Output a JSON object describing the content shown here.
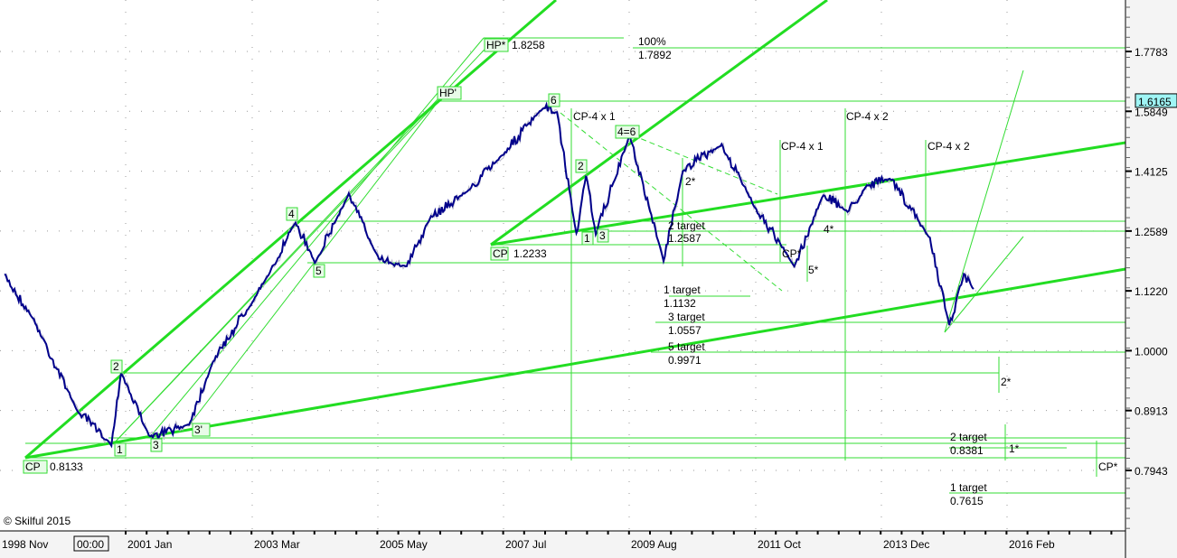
{
  "chart_data": {
    "type": "line",
    "title": "",
    "xlabel": "",
    "ylabel": "",
    "y_scale": "log",
    "ylim": [
      0.72,
      1.96
    ],
    "xlim": [
      "1998-11",
      "2018-03"
    ],
    "grid": true,
    "x_tick_labels": [
      "1998 Nov",
      "2001 Jan",
      "2003 Mar",
      "2005 May",
      "2007 Jul",
      "2009 Aug",
      "2011 Oct",
      "2013 Dec",
      "2016 Feb"
    ],
    "y_tick_labels": [
      "1.7783",
      "1.5849",
      "1.4125",
      "1.2589",
      "1.1220",
      "1.0000",
      "0.8913",
      "0.7943"
    ],
    "current_price": "1.6165",
    "series": [
      {
        "color": "#00008b",
        "points": [
          [
            "1998-12",
            1.156
          ],
          [
            "1999-06",
            1.06
          ],
          [
            "2000-03",
            0.891
          ],
          [
            "2000-10",
            0.835
          ],
          [
            "2000-12",
            0.96
          ],
          [
            "2001-06",
            0.846
          ],
          [
            "2002-02",
            0.868
          ],
          [
            "2002-07",
            0.98
          ],
          [
            "2003-07",
            1.167
          ],
          [
            "2003-12",
            1.282
          ],
          [
            "2004-04",
            1.186
          ],
          [
            "2004-11",
            1.351
          ],
          [
            "2005-05",
            1.197
          ],
          [
            "2005-11",
            1.176
          ],
          [
            "2006-04",
            1.294
          ],
          [
            "2006-12",
            1.364
          ],
          [
            "2007-07",
            1.462
          ],
          [
            "2008-03",
            1.594
          ],
          [
            "2008-06",
            1.581
          ],
          [
            "2008-10",
            1.25
          ],
          [
            "2008-12",
            1.4
          ],
          [
            "2009-02",
            1.253
          ],
          [
            "2009-09",
            1.513
          ],
          [
            "2010-04",
            1.19
          ],
          [
            "2010-08",
            1.414
          ],
          [
            "2011-04",
            1.487
          ],
          [
            "2011-10",
            1.339
          ],
          [
            "2012-07",
            1.176
          ],
          [
            "2013-01",
            1.351
          ],
          [
            "2013-06",
            1.306
          ],
          [
            "2013-10",
            1.375
          ],
          [
            "2014-03",
            1.392
          ],
          [
            "2014-11",
            1.24
          ],
          [
            "2015-03",
            1.051
          ],
          [
            "2015-06",
            1.156
          ],
          [
            "2015-08",
            1.126
          ]
        ]
      }
    ],
    "annotation_color": "#33dd33",
    "annotations": {
      "cp1": "CP",
      "cp1_val": "0.8133",
      "cp2": "CP",
      "cp2_val": "1.2233",
      "hp_star": "HP*",
      "hp_star_val": "1.8258",
      "hp_prime": "HP'",
      "pct": "100%",
      "pct_val": "1.7892",
      "cp4x1_a": "CP-4 x 1",
      "cp4x2_a": "CP-4 x 2",
      "cp4x1_b": "CP-4 x 1",
      "cp4x2_b": "CP-4 x 2",
      "t1": "1 target",
      "t1_val": "1.1132",
      "t3": "3 target",
      "t3_val": "1.0557",
      "t5": "5 target",
      "t5_val": "0.9971",
      "t2": "2 target",
      "t2_val": "1.2587",
      "t2b": "2 target",
      "t2b_val": "0.8381",
      "t1b": "1 target",
      "t1b_val": "0.7615",
      "cpstar1": "CP*",
      "cpstar2": "CP*",
      "five_star": "5*",
      "four_star": "4*",
      "two_star1": "2*",
      "two_star2": "2*",
      "one_star": "1*",
      "waves": [
        "1",
        "2",
        "3",
        "3'",
        "4",
        "5",
        "6",
        "4=6",
        "2",
        "1",
        "3"
      ]
    }
  },
  "footer": {
    "copyright": "© Skilful 2015",
    "time_box": "00:00"
  }
}
